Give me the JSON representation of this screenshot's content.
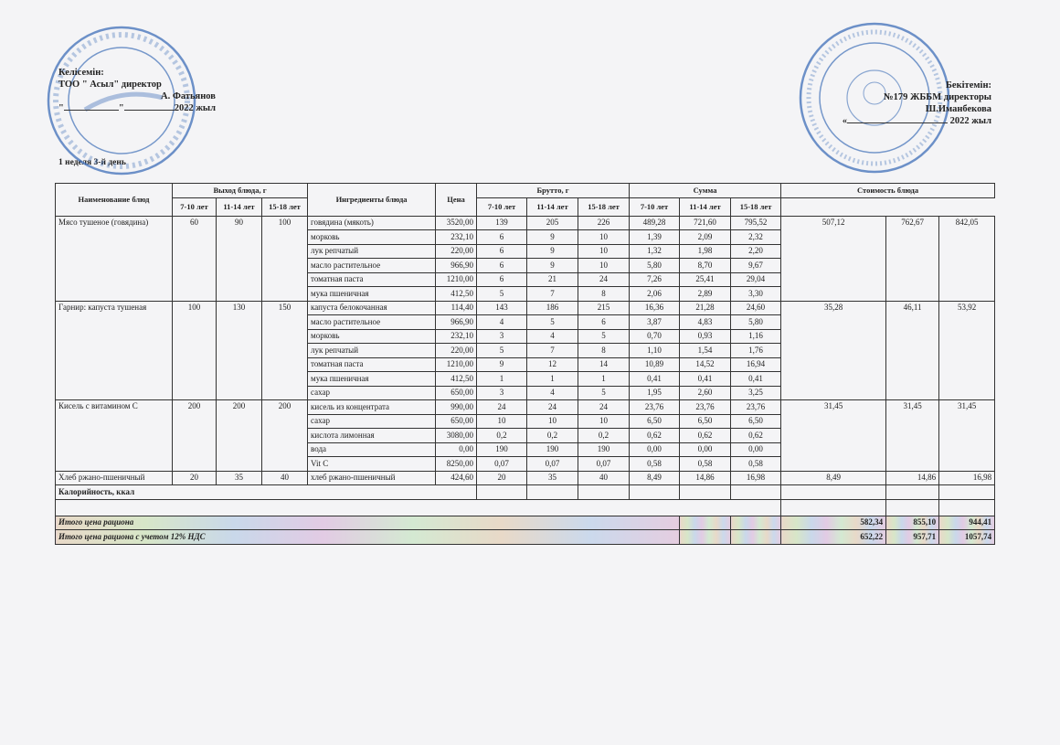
{
  "left_header": {
    "title": "Келісемін:",
    "line1": "ТОО  \" Асыл\" директор",
    "signer": "А. Фатьянов",
    "date_prefix": "\"",
    "date_mid": "\"",
    "year": "2022 жыл"
  },
  "right_header": {
    "title": "Бекітемін:",
    "line1": "№179 ЖББМ директоры",
    "signer": "Ш.Иманбекова",
    "date_prefix": "«",
    "year": "2022 жыл"
  },
  "stamps": {
    "left": "Казахстан Республикасы Алматы қаласы • город Алматы Республика Казахстан • Асыл 3",
    "right": "Алматы қаласы білім басқармасының №179 жалпы білім беретін мектебі • БСН 130240000974"
  },
  "week_label": "1 неделя 3-й день",
  "table": {
    "headers": {
      "dish": "Наименование блюд",
      "output": "Выход блюда, г",
      "ingredients": "Ингредиенты блюда",
      "price": "Цена",
      "brutto": "Брутто, г",
      "sum": "Сумма",
      "cost": "Стоимость блюда",
      "ages": [
        "7-10 лет",
        "11-14 лет",
        "15-18 лет"
      ]
    },
    "dishes": [
      {
        "name": "Мясо тушеное (говядина)",
        "output": [
          "60",
          "90",
          "100"
        ],
        "cost": [
          "507,12",
          "762,67",
          "842,05"
        ],
        "ingredients": [
          {
            "name": "говядина (мякоть)",
            "price": "3520,00",
            "brutto": [
              "139",
              "205",
              "226"
            ],
            "sum": [
              "489,28",
              "721,60",
              "795,52"
            ]
          },
          {
            "name": "морковь",
            "price": "232,10",
            "brutto": [
              "6",
              "9",
              "10"
            ],
            "sum": [
              "1,39",
              "2,09",
              "2,32"
            ]
          },
          {
            "name": "лук репчатый",
            "price": "220,00",
            "brutto": [
              "6",
              "9",
              "10"
            ],
            "sum": [
              "1,32",
              "1,98",
              "2,20"
            ]
          },
          {
            "name": "масло растительное",
            "price": "966,90",
            "brutto": [
              "6",
              "9",
              "10"
            ],
            "sum": [
              "5,80",
              "8,70",
              "9,67"
            ]
          },
          {
            "name": "томатная паста",
            "price": "1210,00",
            "brutto": [
              "6",
              "21",
              "24"
            ],
            "sum": [
              "7,26",
              "25,41",
              "29,04"
            ]
          },
          {
            "name": "мука пшеничная",
            "price": "412,50",
            "brutto": [
              "5",
              "7",
              "8"
            ],
            "sum": [
              "2,06",
              "2,89",
              "3,30"
            ]
          }
        ]
      },
      {
        "name": "Гарнир: капуста тушеная",
        "output": [
          "100",
          "130",
          "150"
        ],
        "cost": [
          "35,28",
          "46,11",
          "53,92"
        ],
        "ingredients": [
          {
            "name": "капуста белокочанная",
            "price": "114,40",
            "brutto": [
              "143",
              "186",
              "215"
            ],
            "sum": [
              "16,36",
              "21,28",
              "24,60"
            ]
          },
          {
            "name": "масло растительное",
            "price": "966,90",
            "brutto": [
              "4",
              "5",
              "6"
            ],
            "sum": [
              "3,87",
              "4,83",
              "5,80"
            ]
          },
          {
            "name": "морковь",
            "price": "232,10",
            "brutto": [
              "3",
              "4",
              "5"
            ],
            "sum": [
              "0,70",
              "0,93",
              "1,16"
            ]
          },
          {
            "name": "лук репчатый",
            "price": "220,00",
            "brutto": [
              "5",
              "7",
              "8"
            ],
            "sum": [
              "1,10",
              "1,54",
              "1,76"
            ]
          },
          {
            "name": "томатная паста",
            "price": "1210,00",
            "brutto": [
              "9",
              "12",
              "14"
            ],
            "sum": [
              "10,89",
              "14,52",
              "16,94"
            ]
          },
          {
            "name": "мука пшеничная",
            "price": "412,50",
            "brutto": [
              "1",
              "1",
              "1"
            ],
            "sum": [
              "0,41",
              "0,41",
              "0,41"
            ]
          },
          {
            "name": "сахар",
            "price": "650,00",
            "brutto": [
              "3",
              "4",
              "5"
            ],
            "sum": [
              "1,95",
              "2,60",
              "3,25"
            ]
          }
        ]
      },
      {
        "name": "Кисель с витамином С",
        "output": [
          "200",
          "200",
          "200"
        ],
        "cost": [
          "31,45",
          "31,45",
          "31,45"
        ],
        "ingredients": [
          {
            "name": "кисель из концентрата",
            "price": "990,00",
            "brutto": [
              "24",
              "24",
              "24"
            ],
            "sum": [
              "23,76",
              "23,76",
              "23,76"
            ]
          },
          {
            "name": "сахар",
            "price": "650,00",
            "brutto": [
              "10",
              "10",
              "10"
            ],
            "sum": [
              "6,50",
              "6,50",
              "6,50"
            ]
          },
          {
            "name": "кислота лимонная",
            "price": "3080,00",
            "brutto": [
              "0,2",
              "0,2",
              "0,2"
            ],
            "sum": [
              "0,62",
              "0,62",
              "0,62"
            ]
          },
          {
            "name": "вода",
            "price": "0,00",
            "brutto": [
              "190",
              "190",
              "190"
            ],
            "sum": [
              "0,00",
              "0,00",
              "0,00"
            ]
          },
          {
            "name": "Vit C",
            "price": "8250,00",
            "brutto": [
              "0,07",
              "0,07",
              "0,07"
            ],
            "sum": [
              "0,58",
              "0,58",
              "0,58"
            ]
          }
        ]
      },
      {
        "name": "Хлеб ржано-пшеничный",
        "output": [
          "20",
          "35",
          "40"
        ],
        "cost": [
          "8,49",
          "14,86",
          "16,98"
        ],
        "ingredients": [
          {
            "name": "хлеб ржано-пшеничный",
            "price": "424,60",
            "brutto": [
              "20",
              "35",
              "40"
            ],
            "sum": [
              "8,49",
              "14,86",
              "16,98"
            ]
          }
        ]
      }
    ],
    "calories_label": "Калорийность, ккал",
    "totals": [
      {
        "label": "Итого цена рациона",
        "values": [
          "582,34",
          "855,10",
          "944,41"
        ]
      },
      {
        "label": "Итого цена рациона с учетом 12% НДС",
        "values": [
          "652,22",
          "957,71",
          "1057,74"
        ]
      }
    ]
  },
  "colors": {
    "stamp": "#3f6fb8",
    "ink": "#222222"
  }
}
